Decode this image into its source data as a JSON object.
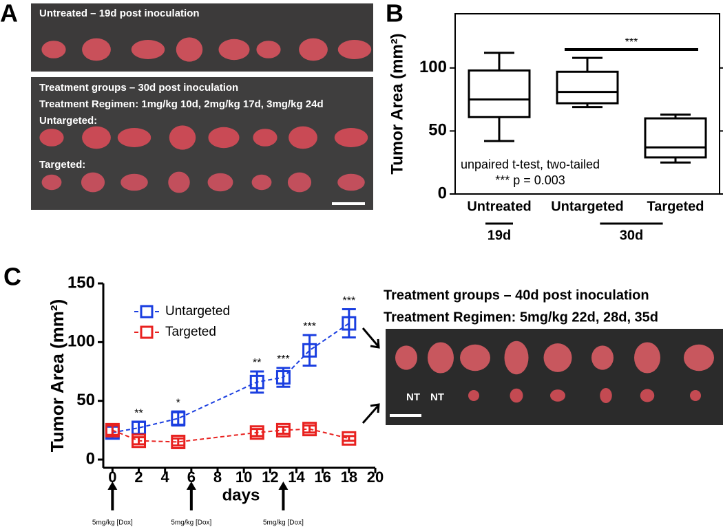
{
  "panel_labels": [
    "A",
    "B",
    "C"
  ],
  "photos": {
    "untreated": {
      "caption": "Untreated – 19d post inoculation"
    },
    "treatment": {
      "lines": [
        "Treatment groups – 30d post inoculation",
        "Treatment Regimen: 1mg/kg 10d, 2mg/kg 17d, 3mg/kg 24d"
      ],
      "rows": [
        "Untargeted:",
        "Targeted:"
      ]
    },
    "late": {
      "lines": [
        "Treatment groups – 40d post inoculation",
        "Treatment Regimen: 5mg/kg 22d, 28d, 35d"
      ],
      "labels": [
        "NT",
        "NT"
      ]
    }
  },
  "chart_data": [
    {
      "type": "box",
      "y_label": "Tumor Area  (mm²)",
      "categories": [
        "Untreated",
        "Untargeted",
        "Targeted"
      ],
      "whisker_low": [
        42,
        69,
        25
      ],
      "q1": [
        61,
        72,
        29
      ],
      "median": [
        75,
        81,
        37
      ],
      "q3": [
        98,
        97,
        60
      ],
      "whisker_high": [
        112,
        108,
        63
      ],
      "ylim": [
        0,
        143
      ],
      "yticks": [
        0,
        50,
        100
      ],
      "groups": [
        {
          "label": "19d",
          "span": [
            0,
            0
          ]
        },
        {
          "label": "30d",
          "span": [
            1,
            2
          ]
        }
      ],
      "significance": {
        "label": "***",
        "span": [
          1,
          2
        ]
      },
      "notes": [
        "unpaired t-test, two-tailed",
        "*** p = 0.003"
      ]
    },
    {
      "type": "line",
      "y_label": "Tumor Area (mm²)",
      "x_label": "days",
      "x": [
        0,
        2,
        5,
        11,
        13,
        15,
        18
      ],
      "series": [
        {
          "name": "Untargeted",
          "color": "#1a3ee0",
          "values": [
            23,
            27,
            35,
            66,
            70,
            93,
            116
          ],
          "errors": [
            5,
            5,
            6,
            9,
            8,
            13,
            12
          ]
        },
        {
          "name": "Targeted",
          "color": "#e8211f",
          "values": [
            25,
            16,
            15,
            23,
            25,
            26,
            18
          ],
          "errors": [
            4,
            3,
            3,
            3,
            3,
            3,
            2
          ]
        }
      ],
      "xlim": [
        -0.7,
        20
      ],
      "xticks": [
        0,
        2,
        4,
        6,
        8,
        10,
        12,
        14,
        16,
        18,
        20
      ],
      "ylim": [
        -7,
        150
      ],
      "yticks": [
        0,
        50,
        100,
        150
      ],
      "annotations": [
        {
          "x": 2,
          "text": "**"
        },
        {
          "x": 5,
          "text": "*"
        },
        {
          "x": 11,
          "text": "**"
        },
        {
          "x": 13,
          "text": "***"
        },
        {
          "x": 15,
          "text": "***"
        },
        {
          "x": 18,
          "text": "***"
        }
      ],
      "doses": [
        {
          "x": 0,
          "label": "5mg/kg [Dox]"
        },
        {
          "x": 6,
          "label": "5mg/kg [Dox]"
        },
        {
          "x": 13,
          "label": "5mg/kg [Dox]"
        }
      ]
    }
  ]
}
